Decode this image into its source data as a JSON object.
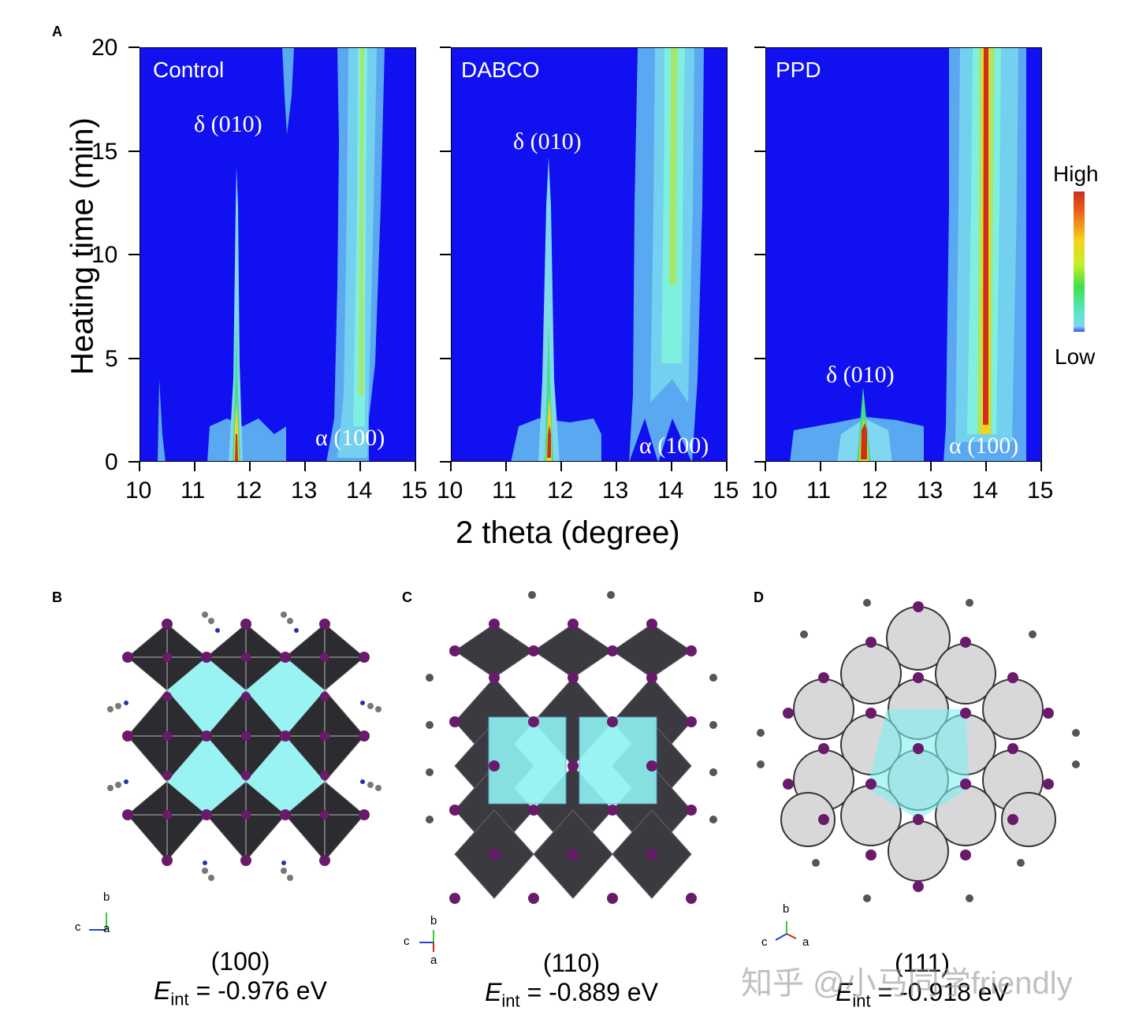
{
  "panel_letters": {
    "a": "A",
    "b": "B",
    "c": "C",
    "d": "D"
  },
  "chart_data": [
    {
      "type": "heatmap",
      "title": "Control",
      "xlabel": "2 theta (degree)",
      "ylabel": "Heating time (min)",
      "xlim": [
        10,
        15
      ],
      "ylim": [
        0,
        20
      ],
      "xticks": [
        "10",
        "11",
        "12",
        "13",
        "14",
        "15"
      ],
      "yticks": [
        "0",
        "5",
        "10",
        "15",
        "20"
      ],
      "annotations": [
        "δ (010)",
        "α (100)"
      ],
      "peaks": [
        {
          "label": "δ (010)",
          "position": 11.8,
          "visible_until_min": 14.7,
          "max_intensity_min": 2
        },
        {
          "label": "α (100)",
          "position": 14.0,
          "appears_after_min": 2,
          "persists_to_min": 20
        }
      ]
    },
    {
      "type": "heatmap",
      "title": "DABCO",
      "xlim": [
        10,
        15
      ],
      "ylim": [
        0,
        20
      ],
      "xticks": [
        "10",
        "11",
        "12",
        "13",
        "14",
        "15"
      ],
      "annotations": [
        "δ (010)",
        "α (100)"
      ],
      "peaks": [
        {
          "label": "δ (010)",
          "position": 11.8,
          "visible_until_min": 14.7,
          "max_intensity_min": 1.8
        },
        {
          "label": "α (100)",
          "position": 14.0,
          "appears_after_min": 0.5,
          "persists_to_min": 20
        }
      ]
    },
    {
      "type": "heatmap",
      "title": "PPD",
      "xlim": [
        10,
        15
      ],
      "ylim": [
        0,
        20
      ],
      "xticks": [
        "10",
        "11",
        "12",
        "13",
        "14",
        "15"
      ],
      "annotations": [
        "δ (010)",
        "α (100)"
      ],
      "peaks": [
        {
          "label": "δ (010)",
          "position": 11.8,
          "visible_until_min": 3.5,
          "max_intensity_min": 1.8
        },
        {
          "label": "α (100)",
          "position": 14.0,
          "appears_after_min": 1.5,
          "persists_to_min": 20,
          "high_intensity": true
        }
      ]
    }
  ],
  "colorbar": {
    "high": "High",
    "low": "Low"
  },
  "structures": [
    {
      "panel": "B",
      "plane": "(100)",
      "energy_symbol": "E",
      "energy_sub": "int",
      "energy_value": " = -0.976 eV",
      "axes": [
        "b",
        "c",
        "a"
      ]
    },
    {
      "panel": "C",
      "plane": "(110)",
      "energy_symbol": "E",
      "energy_sub": "int",
      "energy_value": " = -0.889 eV",
      "axes": [
        "b",
        "c",
        "a"
      ]
    },
    {
      "panel": "D",
      "plane": "(111)",
      "energy_symbol": "E",
      "energy_sub": "int",
      "energy_value": " = -0.918 eV",
      "axes": [
        "b",
        "c",
        "a"
      ]
    }
  ],
  "watermark": "知乎 @小马同学friendly",
  "colors": {
    "background": "#1010f0",
    "iodine": "#7a1f7a",
    "octahedron": "#2b2b30",
    "cyan": "#7ff0f0"
  }
}
